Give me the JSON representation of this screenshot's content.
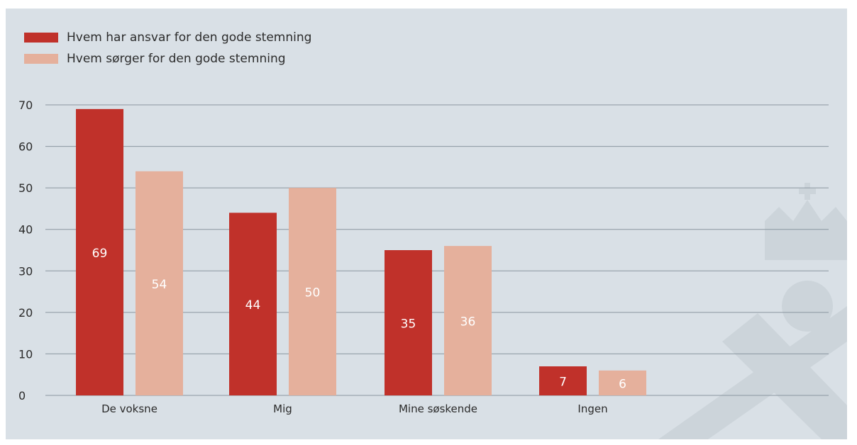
{
  "colors": {
    "background": "#d9e0e6",
    "grid": "#8a96a0",
    "text": "#2b2b2b",
    "value_label": "#ffffff",
    "watermark": "#ccd4da"
  },
  "chart_data": {
    "type": "bar",
    "title": "",
    "xlabel": "",
    "ylabel": "",
    "ylim": [
      0,
      70
    ],
    "yticks": [
      0,
      10,
      20,
      30,
      40,
      50,
      60,
      70
    ],
    "grid": true,
    "legend_position": "top-left",
    "categories": [
      "De voksne",
      "Mig",
      "Mine søskende",
      "Ingen"
    ],
    "series": [
      {
        "name": "Hvem har ansvar for den gode stemning",
        "color": "#c0312a",
        "values": [
          69,
          44,
          35,
          7
        ]
      },
      {
        "name": "Hvem sørger for den gode stemning",
        "color": "#e5b09c",
        "values": [
          54,
          50,
          36,
          6
        ]
      }
    ]
  }
}
